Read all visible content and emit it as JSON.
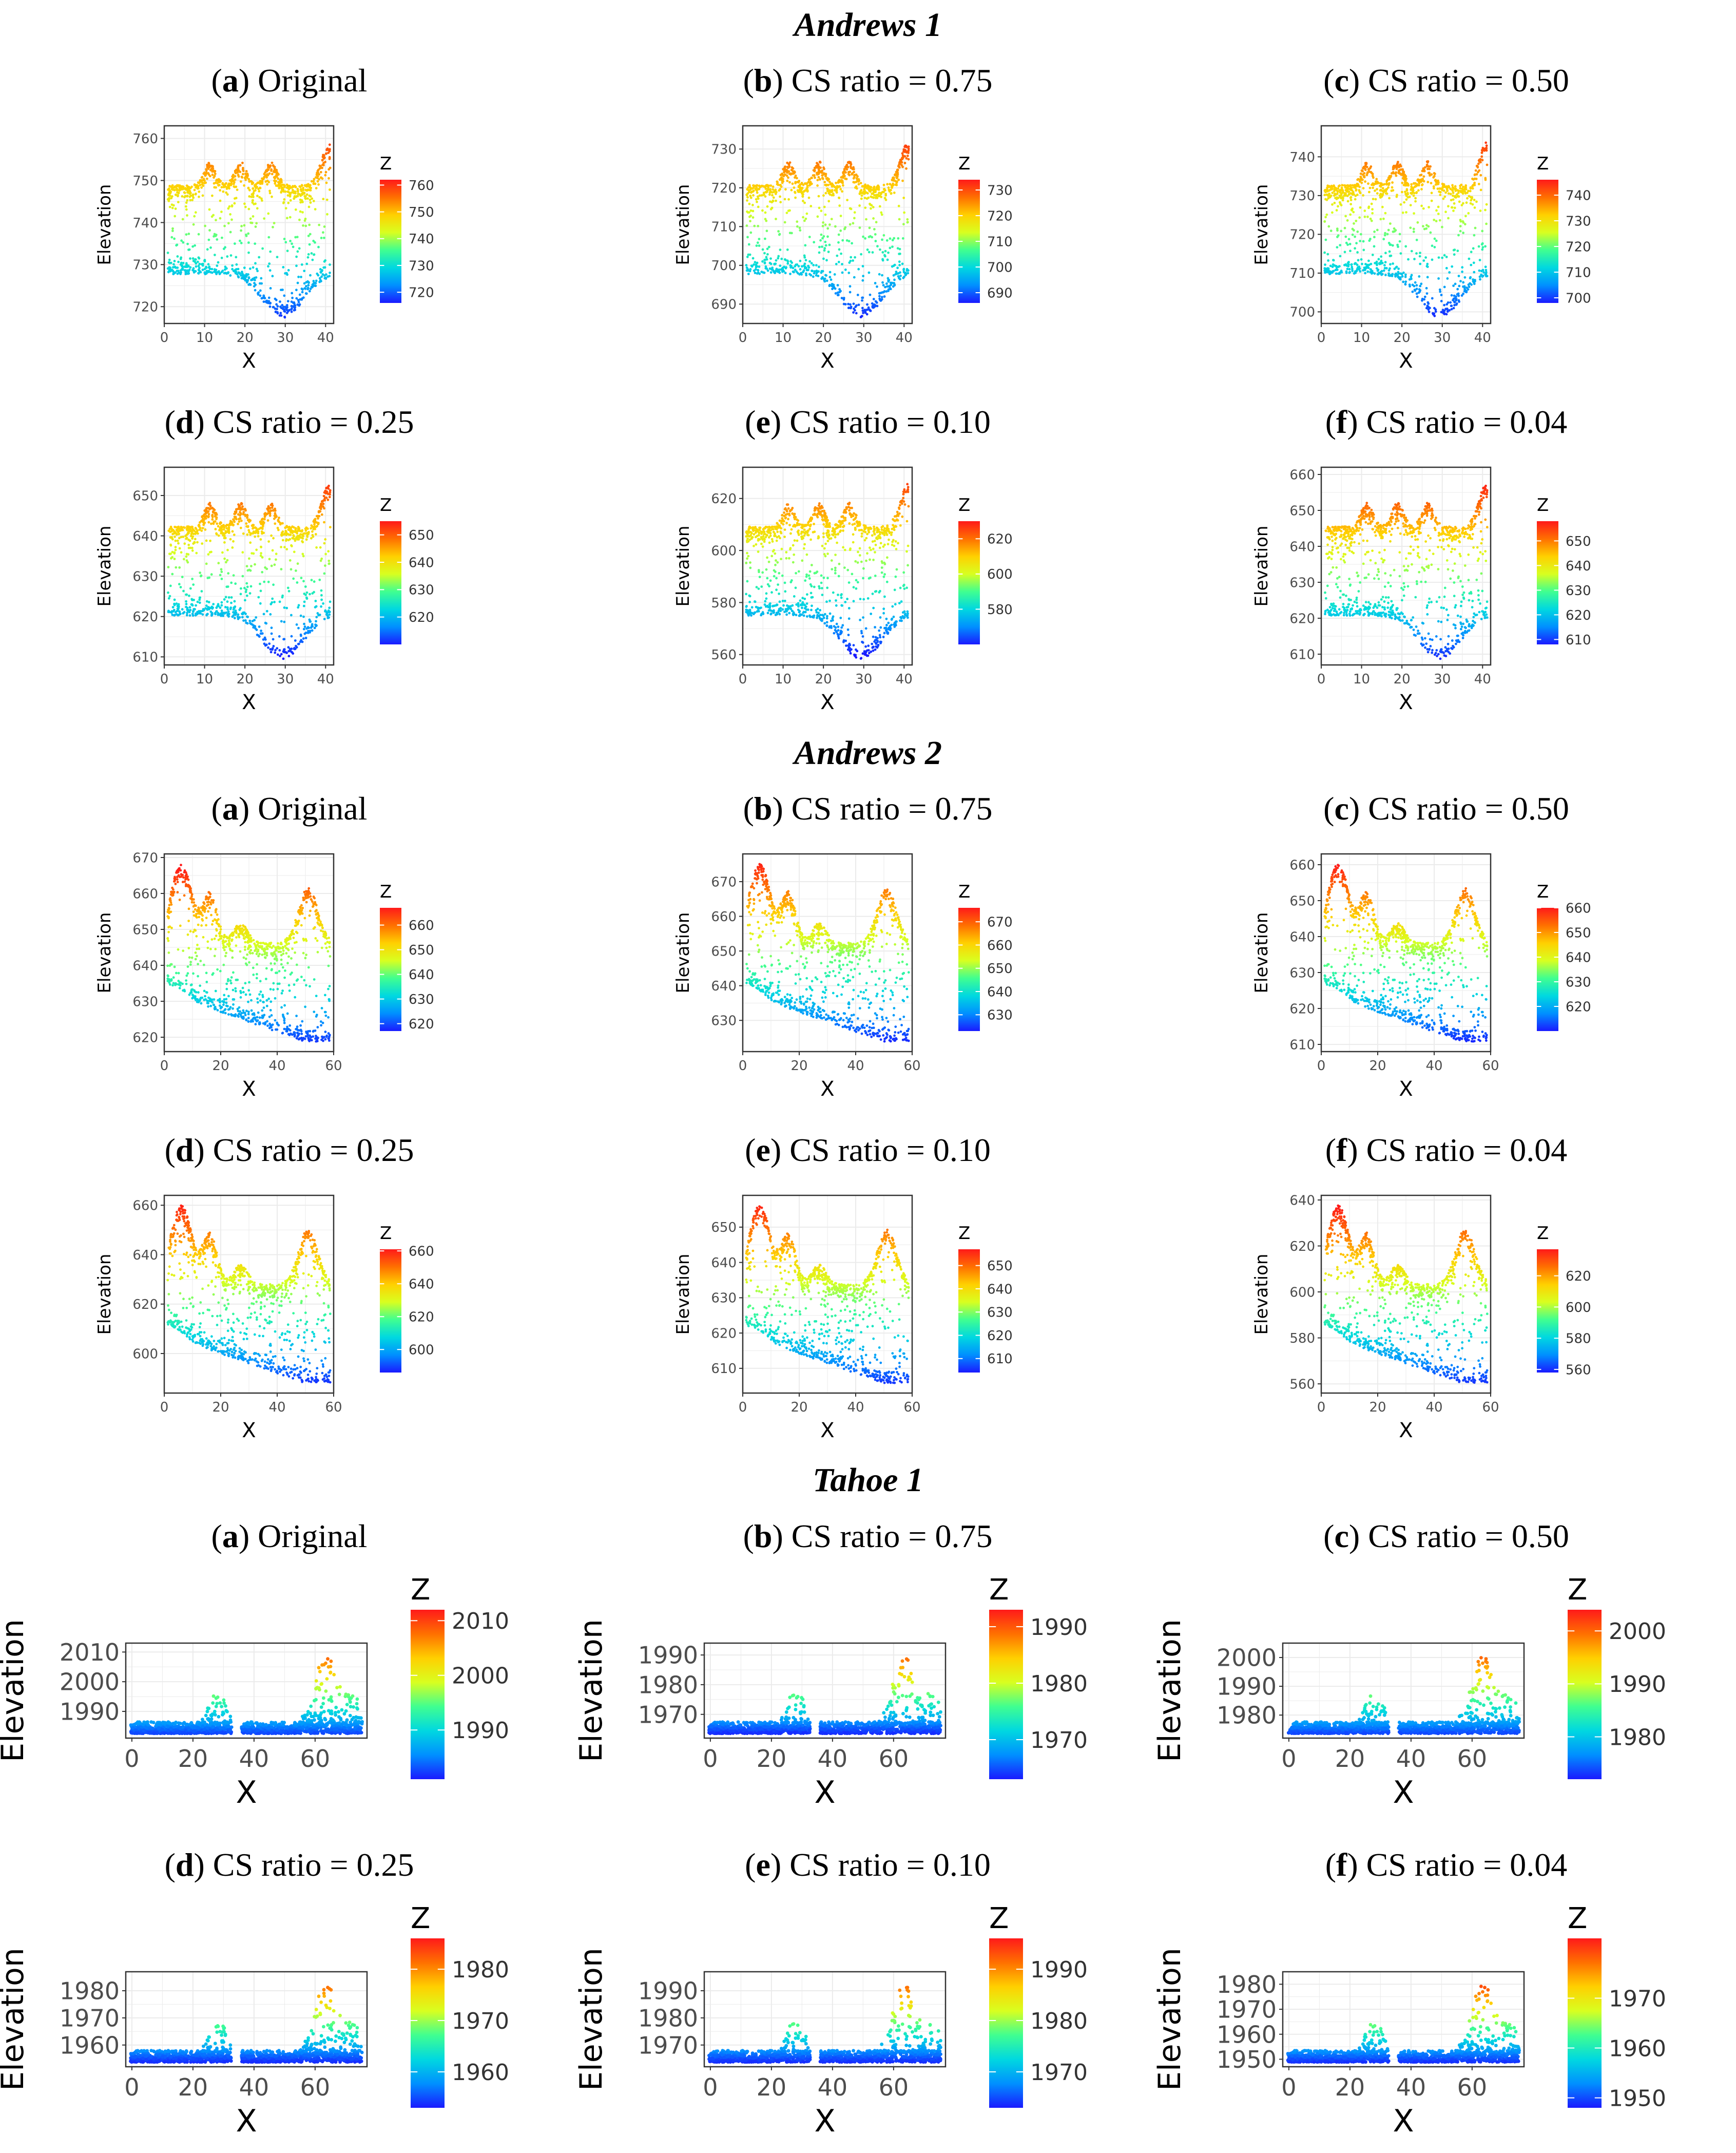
{
  "figure": {
    "sections": [
      {
        "title": "Andrews 1"
      },
      {
        "title": "Andrews 2"
      },
      {
        "title": "Tahoe 1"
      }
    ],
    "panel_labels": [
      {
        "letter": "a",
        "rest": "Original"
      },
      {
        "letter": "b",
        "rest": "CS ratio = 0.75"
      },
      {
        "letter": "c",
        "rest": "CS ratio = 0.50"
      },
      {
        "letter": "d",
        "rest": "CS ratio = 0.25"
      },
      {
        "letter": "e",
        "rest": "CS ratio = 0.10"
      },
      {
        "letter": "f",
        "rest": "CS ratio = 0.04"
      }
    ],
    "colors": {
      "colormap": [
        "#1a1aff",
        "#0090ff",
        "#00d8e0",
        "#40ff90",
        "#d8ff20",
        "#ffd000",
        "#ff7000",
        "#ff1a1a"
      ],
      "grid": "#ebebeb",
      "axis_text": "#4d4d4d",
      "title_text": "#000000"
    }
  },
  "chart_data": [
    {
      "id": "a1-a",
      "type": "scatter",
      "section": "Andrews 1",
      "panel": "a",
      "xlabel": "X",
      "ylabel": "Elevation",
      "xlim": [
        0,
        42
      ],
      "ylim": [
        716,
        763
      ],
      "xticks": [
        0,
        10,
        20,
        30,
        40
      ],
      "yticks": [
        720,
        730,
        740,
        750,
        760
      ],
      "legend_title": "Z",
      "legend_ticks": [
        720,
        730,
        740,
        750,
        760
      ],
      "color_range": [
        716,
        762
      ],
      "profile": "andrews1"
    },
    {
      "id": "a1-b",
      "type": "scatter",
      "section": "Andrews 1",
      "panel": "b",
      "xlabel": "X",
      "ylabel": "Elevation",
      "xlim": [
        0,
        42
      ],
      "ylim": [
        685,
        736
      ],
      "xticks": [
        0,
        10,
        20,
        30,
        40
      ],
      "yticks": [
        690,
        700,
        710,
        720,
        730
      ],
      "legend_title": "Z",
      "legend_ticks": [
        690,
        700,
        710,
        720,
        730
      ],
      "color_range": [
        686,
        734
      ],
      "profile": "andrews1"
    },
    {
      "id": "a1-c",
      "type": "scatter",
      "section": "Andrews 1",
      "panel": "c",
      "xlabel": "X",
      "ylabel": "Elevation",
      "xlim": [
        0,
        42
      ],
      "ylim": [
        697,
        748
      ],
      "xticks": [
        0,
        10,
        20,
        30,
        40
      ],
      "yticks": [
        700,
        710,
        720,
        730,
        740
      ],
      "legend_title": "Z",
      "legend_ticks": [
        700,
        710,
        720,
        730,
        740
      ],
      "color_range": [
        698,
        746
      ],
      "profile": "andrews1"
    },
    {
      "id": "a1-d",
      "type": "scatter",
      "section": "Andrews 1",
      "panel": "d",
      "xlabel": "X",
      "ylabel": "Elevation",
      "xlim": [
        0,
        42
      ],
      "ylim": [
        608,
        657
      ],
      "xticks": [
        0,
        10,
        20,
        30,
        40
      ],
      "yticks": [
        610,
        620,
        630,
        640,
        650
      ],
      "legend_title": "Z",
      "legend_ticks": [
        620,
        630,
        640,
        650
      ],
      "color_range": [
        610,
        655
      ],
      "profile": "andrews1"
    },
    {
      "id": "a1-e",
      "type": "scatter",
      "section": "Andrews 1",
      "panel": "e",
      "xlabel": "X",
      "ylabel": "Elevation",
      "xlim": [
        0,
        42
      ],
      "ylim": [
        556,
        632
      ],
      "xticks": [
        0,
        10,
        20,
        30,
        40
      ],
      "yticks": [
        560,
        580,
        600,
        620
      ],
      "legend_title": "Z",
      "legend_ticks": [
        580,
        600,
        620
      ],
      "color_range": [
        560,
        630
      ],
      "profile": "andrews1"
    },
    {
      "id": "a1-f",
      "type": "scatter",
      "section": "Andrews 1",
      "panel": "f",
      "xlabel": "X",
      "ylabel": "Elevation",
      "xlim": [
        0,
        42
      ],
      "ylim": [
        607,
        662
      ],
      "xticks": [
        0,
        10,
        20,
        30,
        40
      ],
      "yticks": [
        610,
        620,
        630,
        640,
        650,
        660
      ],
      "legend_title": "Z",
      "legend_ticks": [
        610,
        620,
        630,
        640,
        650
      ],
      "color_range": [
        608,
        658
      ],
      "profile": "andrews1"
    },
    {
      "id": "a2-a",
      "type": "scatter",
      "section": "Andrews 2",
      "panel": "a",
      "xlabel": "X",
      "ylabel": "Elevation",
      "xlim": [
        0,
        60
      ],
      "ylim": [
        616,
        671
      ],
      "xticks": [
        0,
        20,
        40,
        60
      ],
      "yticks": [
        620,
        630,
        640,
        650,
        660,
        670
      ],
      "legend_title": "Z",
      "legend_ticks": [
        620,
        630,
        640,
        650,
        660
      ],
      "color_range": [
        617,
        667
      ],
      "profile": "andrews2"
    },
    {
      "id": "a2-b",
      "type": "scatter",
      "section": "Andrews 2",
      "panel": "b",
      "xlabel": "X",
      "ylabel": "Elevation",
      "xlim": [
        0,
        60
      ],
      "ylim": [
        621,
        678
      ],
      "xticks": [
        0,
        20,
        40,
        60
      ],
      "yticks": [
        630,
        640,
        650,
        660,
        670
      ],
      "legend_title": "Z",
      "legend_ticks": [
        630,
        640,
        650,
        660,
        670
      ],
      "color_range": [
        623,
        676
      ],
      "profile": "andrews2"
    },
    {
      "id": "a2-c",
      "type": "scatter",
      "section": "Andrews 2",
      "panel": "c",
      "xlabel": "X",
      "ylabel": "Elevation",
      "xlim": [
        0,
        60
      ],
      "ylim": [
        608,
        663
      ],
      "xticks": [
        0,
        20,
        40,
        60
      ],
      "yticks": [
        610,
        620,
        630,
        640,
        650,
        660
      ],
      "legend_title": "Z",
      "legend_ticks": [
        620,
        630,
        640,
        650,
        660
      ],
      "color_range": [
        610,
        660
      ],
      "profile": "andrews2"
    },
    {
      "id": "a2-d",
      "type": "scatter",
      "section": "Andrews 2",
      "panel": "d",
      "xlabel": "X",
      "ylabel": "Elevation",
      "xlim": [
        0,
        60
      ],
      "ylim": [
        584,
        664
      ],
      "xticks": [
        0,
        20,
        40,
        60
      ],
      "yticks": [
        600,
        620,
        640,
        660
      ],
      "legend_title": "Z",
      "legend_ticks": [
        600,
        620,
        640,
        660
      ],
      "color_range": [
        586,
        661
      ],
      "profile": "andrews2"
    },
    {
      "id": "a2-e",
      "type": "scatter",
      "section": "Andrews 2",
      "panel": "e",
      "xlabel": "X",
      "ylabel": "Elevation",
      "xlim": [
        0,
        60
      ],
      "ylim": [
        603,
        659
      ],
      "xticks": [
        0,
        20,
        40,
        60
      ],
      "yticks": [
        610,
        620,
        630,
        640,
        650
      ],
      "legend_title": "Z",
      "legend_ticks": [
        610,
        620,
        630,
        640,
        650
      ],
      "color_range": [
        604,
        657
      ],
      "profile": "andrews2"
    },
    {
      "id": "a2-f",
      "type": "scatter",
      "section": "Andrews 2",
      "panel": "f",
      "xlabel": "X",
      "ylabel": "Elevation",
      "xlim": [
        0,
        60
      ],
      "ylim": [
        556,
        642
      ],
      "xticks": [
        0,
        20,
        40,
        60
      ],
      "yticks": [
        560,
        580,
        600,
        620,
        640
      ],
      "legend_title": "Z",
      "legend_ticks": [
        560,
        580,
        600,
        620
      ],
      "color_range": [
        558,
        637
      ],
      "profile": "andrews2"
    },
    {
      "id": "t1-a",
      "type": "scatter",
      "section": "Tahoe 1",
      "panel": "a",
      "xlabel": "X",
      "ylabel": "Elevation",
      "xlim": [
        -2,
        77
      ],
      "ylim": [
        1981,
        2013
      ],
      "xticks": [
        0,
        20,
        40,
        60
      ],
      "yticks": [
        1990,
        2000,
        2010
      ],
      "legend_title": "Z",
      "legend_ticks": [
        1990,
        2000,
        2010
      ],
      "color_range": [
        1981,
        2012
      ],
      "profile": "tahoe"
    },
    {
      "id": "t1-b",
      "type": "scatter",
      "section": "Tahoe 1",
      "panel": "b",
      "xlabel": "X",
      "ylabel": "Elevation",
      "xlim": [
        -2,
        77
      ],
      "ylim": [
        1962,
        1994
      ],
      "xticks": [
        0,
        20,
        40,
        60
      ],
      "yticks": [
        1970,
        1980,
        1990
      ],
      "legend_title": "Z",
      "legend_ticks": [
        1970,
        1980,
        1990
      ],
      "color_range": [
        1963,
        1993
      ],
      "profile": "tahoe"
    },
    {
      "id": "t1-c",
      "type": "scatter",
      "section": "Tahoe 1",
      "panel": "c",
      "xlabel": "X",
      "ylabel": "Elevation",
      "xlim": [
        -2,
        77
      ],
      "ylim": [
        1972,
        2005
      ],
      "xticks": [
        0,
        20,
        40,
        60
      ],
      "yticks": [
        1980,
        1990,
        2000
      ],
      "legend_title": "Z",
      "legend_ticks": [
        1980,
        1990,
        2000
      ],
      "color_range": [
        1972,
        2004
      ],
      "profile": "tahoe"
    },
    {
      "id": "t1-d",
      "type": "scatter",
      "section": "Tahoe 1",
      "panel": "d",
      "xlabel": "X",
      "ylabel": "Elevation",
      "xlim": [
        -2,
        77
      ],
      "ylim": [
        1952,
        1987
      ],
      "xticks": [
        0,
        20,
        40,
        60
      ],
      "yticks": [
        1960,
        1970,
        1980
      ],
      "legend_title": "Z",
      "legend_ticks": [
        1960,
        1970,
        1980
      ],
      "color_range": [
        1953,
        1986
      ],
      "profile": "tahoe"
    },
    {
      "id": "t1-e",
      "type": "scatter",
      "section": "Tahoe 1",
      "panel": "e",
      "xlabel": "X",
      "ylabel": "Elevation",
      "xlim": [
        -2,
        77
      ],
      "ylim": [
        1962,
        1997
      ],
      "xticks": [
        0,
        20,
        40,
        60
      ],
      "yticks": [
        1970,
        1980,
        1990
      ],
      "legend_title": "Z",
      "legend_ticks": [
        1970,
        1980,
        1990
      ],
      "color_range": [
        1963,
        1996
      ],
      "profile": "tahoe"
    },
    {
      "id": "t1-f",
      "type": "scatter",
      "section": "Tahoe 1",
      "panel": "f",
      "xlabel": "X",
      "ylabel": "Elevation",
      "xlim": [
        -2,
        77
      ],
      "ylim": [
        1947,
        1985
      ],
      "xticks": [
        0,
        20,
        40,
        60
      ],
      "yticks": [
        1950,
        1960,
        1970,
        1980
      ],
      "legend_title": "Z",
      "legend_ticks": [
        1950,
        1960,
        1970
      ],
      "color_range": [
        1948,
        1982
      ],
      "profile": "tahoe"
    }
  ]
}
